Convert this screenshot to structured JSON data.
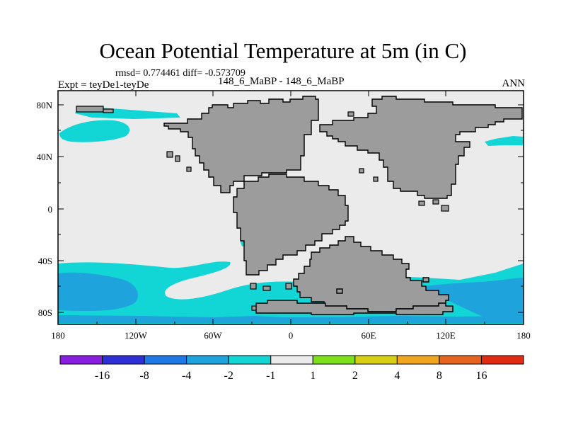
{
  "title": "Ocean Potential Temperature at 5m (in C)",
  "stats": "rmsd= 0.774461 diff= -0.573709",
  "experiment": "Expt = teyDe1-teyDe",
  "cases": "148_6_MaBP - 148_6_MaBP",
  "season": "ANN",
  "lat_labels": [
    "80N",
    "40N",
    "0",
    "40S",
    "80S"
  ],
  "lon_labels": [
    "180",
    "120W",
    "60W",
    "0",
    "60E",
    "120E",
    "180"
  ],
  "colorbar": {
    "levels": [
      "-16",
      "-8",
      "-4",
      "-2",
      "-1",
      "1",
      "2",
      "4",
      "8",
      "16"
    ],
    "colors": [
      "#8a1ee0",
      "#2f2fd6",
      "#1e78e6",
      "#1ea3dc",
      "#12d6d6",
      "#ebebeb",
      "#7ee01a",
      "#d6cf12",
      "#f0a51e",
      "#e6641e",
      "#e02a12"
    ]
  },
  "map_colors": {
    "land": "#9c9c9c",
    "near_zero": "#ebebeb",
    "cool_minus1": "#12d6d6",
    "cool_minus2": "#1ea3dc"
  }
}
